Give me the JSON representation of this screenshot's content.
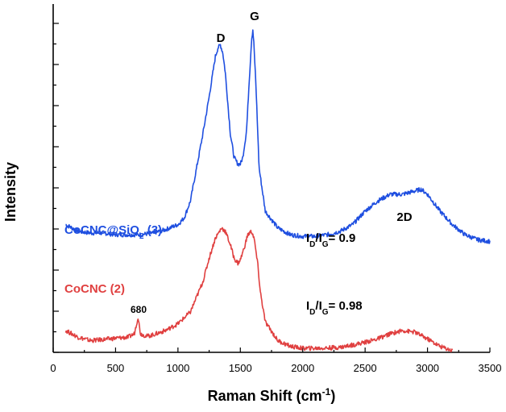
{
  "chart_data": {
    "type": "line",
    "xlabel_main": "Raman Shift (cm",
    "xlabel_sup": "-1",
    "xlabel_end": ")",
    "ylabel": "Intensity",
    "xlim": [
      0,
      3500
    ],
    "x_ticks": [
      "0",
      "500",
      "1000",
      "1500",
      "2000",
      "2500",
      "3000",
      "3500"
    ],
    "x_tick_values": [
      0,
      500,
      1000,
      1500,
      2000,
      2500,
      3000,
      3500
    ],
    "ylim": [
      0,
      100
    ],
    "y_tick_labels_visible": false,
    "series": [
      {
        "name_main": "CoCNC@SiO",
        "name_sub": "2",
        "name_end": " (3)",
        "color": "#1f4fe0",
        "x": [
          100,
          200,
          300,
          400,
          500,
          600,
          700,
          800,
          900,
          1000,
          1050,
          1100,
          1150,
          1200,
          1250,
          1300,
          1320,
          1340,
          1360,
          1380,
          1400,
          1420,
          1450,
          1480,
          1500,
          1520,
          1550,
          1570,
          1590,
          1600,
          1610,
          1630,
          1650,
          1700,
          1800,
          1900,
          2000,
          2100,
          2200,
          2300,
          2400,
          2500,
          2600,
          2700,
          2800,
          2900,
          2950,
          3000,
          3100,
          3200,
          3300,
          3400,
          3500
        ],
        "y": [
          38,
          36,
          35.5,
          35.5,
          35,
          35,
          35,
          35.5,
          36.5,
          38,
          40,
          45,
          55,
          65,
          76,
          88,
          90.5,
          91.5,
          89,
          83,
          74,
          65,
          58,
          56,
          56,
          58,
          66,
          80,
          93,
          96,
          91,
          75,
          55,
          42,
          37,
          35,
          34.5,
          34.5,
          35,
          36,
          38,
          42,
          45,
          47,
          47,
          48,
          48.5,
          47,
          42,
          38,
          35,
          33.5,
          33
        ]
      },
      {
        "name_main": "CoCNC",
        "name_sub": "",
        "name_end": " (2)",
        "color": "#e04040",
        "x": [
          100,
          200,
          300,
          400,
          500,
          600,
          650,
          680,
          700,
          750,
          800,
          900,
          1000,
          1100,
          1200,
          1250,
          1300,
          1350,
          1380,
          1420,
          1450,
          1480,
          1500,
          1530,
          1560,
          1590,
          1610,
          1640,
          1660,
          1700,
          1800,
          1900,
          2000,
          2100,
          2200,
          2300,
          2400,
          2500,
          2600,
          2700,
          2800,
          2900,
          3000,
          3100,
          3200
        ],
        "y": [
          6.5,
          4.5,
          3.5,
          3.8,
          4.2,
          4.5,
          5.5,
          10.5,
          5.5,
          4.8,
          5.2,
          6.5,
          8.5,
          12,
          21,
          28,
          34,
          37,
          36,
          32,
          28,
          26.5,
          27.5,
          31,
          35,
          36,
          34,
          26,
          18,
          9,
          3.5,
          1.8,
          1.2,
          1.2,
          1.3,
          1.5,
          2.2,
          3,
          4,
          5.5,
          6.5,
          6,
          4,
          1.8,
          0.5
        ]
      }
    ],
    "annotations": {
      "d_peak": "D",
      "g_peak": "G",
      "peak_2d": "2D",
      "ratio3_main": "I",
      "ratio3_sub1": "D",
      "ratio3_mid": "/I",
      "ratio3_sub2": "G",
      "ratio3_end": "= 0.9",
      "ratio2_main": "I",
      "ratio2_sub1": "D",
      "ratio2_mid": "/I",
      "ratio2_sub2": "G",
      "ratio2_end": "= 0.98",
      "peak_680": "680"
    }
  }
}
